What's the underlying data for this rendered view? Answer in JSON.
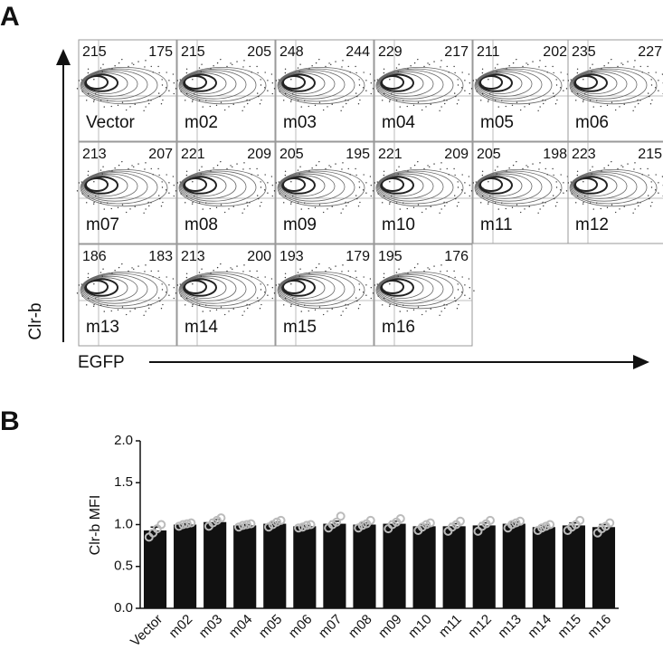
{
  "panel_a": {
    "label": "A",
    "y_label": "Clr-b",
    "x_label": "EGFP",
    "plots": [
      {
        "name": "Vector",
        "left": 215,
        "right": 175
      },
      {
        "name": "m02",
        "left": 215,
        "right": 205
      },
      {
        "name": "m03",
        "left": 248,
        "right": 244
      },
      {
        "name": "m04",
        "left": 229,
        "right": 217
      },
      {
        "name": "m05",
        "left": 211,
        "right": 202
      },
      {
        "name": "m06",
        "left": 235,
        "right": 227
      },
      {
        "name": "m07",
        "left": 213,
        "right": 207
      },
      {
        "name": "m08",
        "left": 221,
        "right": 209
      },
      {
        "name": "m09",
        "left": 205,
        "right": 195
      },
      {
        "name": "m10",
        "left": 221,
        "right": 209
      },
      {
        "name": "m11",
        "left": 205,
        "right": 198
      },
      {
        "name": "m12",
        "left": 223,
        "right": 215
      },
      {
        "name": "m13",
        "left": 186,
        "right": 183
      },
      {
        "name": "m14",
        "left": 213,
        "right": 200
      },
      {
        "name": "m15",
        "left": 193,
        "right": 179
      },
      {
        "name": "m16",
        "left": 195,
        "right": 176
      }
    ]
  },
  "chart_data": {
    "type": "bar",
    "panel_label": "B",
    "y_label": "Clr-b MFI",
    "categories": [
      "Vector",
      "m02",
      "m03",
      "m04",
      "m05",
      "m06",
      "m07",
      "m08",
      "m09",
      "m10",
      "m11",
      "m12",
      "m13",
      "m14",
      "m15",
      "m16"
    ],
    "values": [
      0.93,
      1.0,
      1.03,
      0.99,
      1.01,
      0.98,
      1.01,
      1.0,
      1.01,
      0.98,
      0.98,
      0.99,
      1.01,
      0.97,
      0.99,
      0.97
    ],
    "errors": [
      0.04,
      0.01,
      0.03,
      0.01,
      0.02,
      0.01,
      0.03,
      0.02,
      0.03,
      0.02,
      0.03,
      0.03,
      0.02,
      0.02,
      0.03,
      0.03
    ],
    "points": [
      [
        0.85,
        0.9,
        0.95,
        1.0
      ],
      [
        0.98,
        1.0,
        1.01,
        1.02
      ],
      [
        0.98,
        1.02,
        1.05,
        1.08
      ],
      [
        0.97,
        0.99,
        1.0,
        1.01
      ],
      [
        0.97,
        1.0,
        1.03,
        1.05
      ],
      [
        0.96,
        0.97,
        0.99,
        1.0
      ],
      [
        0.96,
        1.0,
        1.03,
        1.1
      ],
      [
        0.96,
        0.99,
        1.01,
        1.05
      ],
      [
        0.95,
        1.0,
        1.03,
        1.07
      ],
      [
        0.93,
        0.97,
        1.0,
        1.02
      ],
      [
        0.92,
        0.97,
        1.0,
        1.04
      ],
      [
        0.92,
        0.98,
        1.01,
        1.05
      ],
      [
        0.96,
        1.0,
        1.02,
        1.04
      ],
      [
        0.93,
        0.96,
        0.98,
        1.0
      ],
      [
        0.93,
        0.97,
        1.0,
        1.05
      ],
      [
        0.9,
        0.95,
        0.98,
        1.02
      ]
    ],
    "color": "#111111",
    "point_color": "#bbbbbb",
    "ylim": [
      0,
      2
    ],
    "yticks": [
      {
        "value": 0,
        "label": "0.0"
      },
      {
        "value": 0.5,
        "label": "0.5"
      },
      {
        "value": 1,
        "label": "1.0"
      },
      {
        "value": 1.5,
        "label": "1.5"
      },
      {
        "value": 2,
        "label": "2.0"
      }
    ]
  }
}
